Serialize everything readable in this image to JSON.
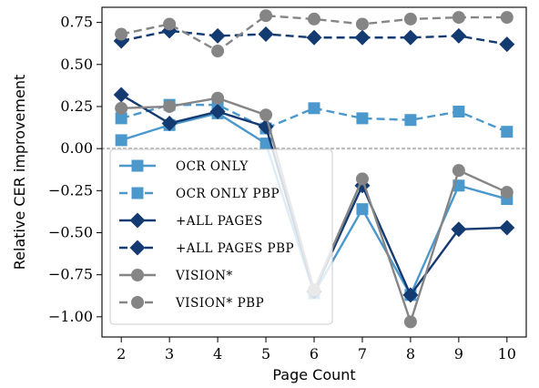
{
  "chart_data": {
    "type": "line",
    "xlabel": "Page Count",
    "ylabel": "Relative CER improvement",
    "x": [
      2,
      3,
      4,
      5,
      6,
      7,
      8,
      9,
      10
    ],
    "xlim": [
      1.6,
      10.4
    ],
    "ylim": [
      -1.12,
      0.84
    ],
    "yticks": [
      0.75,
      0.5,
      0.25,
      0.0,
      -0.25,
      -0.5,
      -0.75,
      -1.0
    ],
    "ytick_labels": [
      "0.75",
      "0.50",
      "0.25",
      "0.00",
      "−0.25",
      "−0.50",
      "−0.75",
      "−1.00"
    ],
    "xtick_labels": [
      "2",
      "3",
      "4",
      "5",
      "6",
      "7",
      "8",
      "9",
      "10"
    ],
    "reference_line": {
      "y": 0,
      "style": "dotted",
      "color": "#bbbbbb"
    },
    "legend_position": "lower-left",
    "series": [
      {
        "name": "OCR ONLY",
        "color": "#4a98cc",
        "dash": "solid",
        "marker": "square",
        "values": [
          0.05,
          0.14,
          0.21,
          0.03,
          -0.86,
          -0.36,
          -0.87,
          -0.22,
          -0.3
        ]
      },
      {
        "name": "OCR ONLY PBP",
        "color": "#4a98cc",
        "dash": "dashed",
        "marker": "square",
        "values": [
          0.18,
          0.26,
          0.26,
          0.12,
          0.24,
          0.18,
          0.17,
          0.22,
          0.1
        ]
      },
      {
        "name": "+ALL PAGES",
        "color": "#143a72",
        "dash": "solid",
        "marker": "diamond",
        "values": [
          0.32,
          0.15,
          0.22,
          0.13,
          -0.85,
          -0.22,
          -0.87,
          -0.48,
          -0.47
        ]
      },
      {
        "name": "+ALL PAGES PBP",
        "color": "#143a72",
        "dash": "dashed",
        "marker": "diamond",
        "values": [
          0.64,
          0.7,
          0.67,
          0.68,
          0.66,
          0.66,
          0.66,
          0.67,
          0.62
        ]
      },
      {
        "name": "VISION*",
        "color": "#858585",
        "dash": "solid",
        "marker": "circle",
        "values": [
          0.24,
          0.25,
          0.3,
          0.2,
          -0.84,
          -0.18,
          -1.03,
          -0.13,
          -0.26
        ]
      },
      {
        "name": "VISION* PBP",
        "color": "#858585",
        "dash": "dashed",
        "marker": "circle",
        "values": [
          0.68,
          0.74,
          0.58,
          0.79,
          0.77,
          0.74,
          0.77,
          0.78,
          0.78
        ]
      }
    ]
  }
}
